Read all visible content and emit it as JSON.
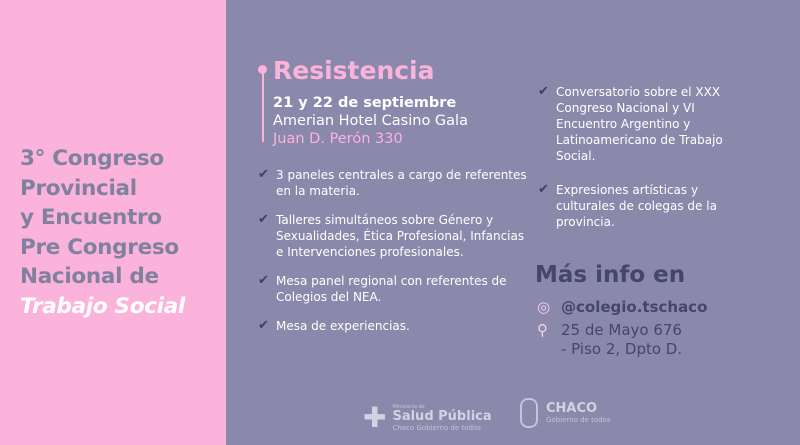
{
  "title": {
    "lines": [
      "3° Congreso",
      "Provincial",
      "y Encuentro",
      "Pre Congreso",
      "Nacional de"
    ],
    "highlight": "Trabajo Social"
  },
  "event": {
    "city": "Resistencia",
    "date": "21 y 22 de septiembre",
    "venue": "Amerian Hotel Casino Gala",
    "address": "Juan D. Perón 330"
  },
  "list_left": [
    {
      "icon": "checkmark-icon",
      "text": "3 paneles centrales a cargo de referentes en la materia."
    },
    {
      "icon": "checkmark-icon",
      "text": "Talleres simultáneos sobre Género y Sexualidades, Ética Profesional, Infancias e Intervenciones profesionales."
    },
    {
      "icon": "checkmark-icon",
      "text": "Mesa panel regional con referentes de Colegios del NEA."
    },
    {
      "icon": "checkmark-icon",
      "text": "Mesa de experiencias."
    }
  ],
  "list_right": [
    {
      "icon": "checkmark-icon",
      "text": "Conversatorio sobre el XXX Congreso Nacional y VI Encuentro Argentino y Latinoamericano de Trabajo Social."
    },
    {
      "icon": "checkmark-icon",
      "text": "Expresiones artísticas y culturales de colegas de la provincia."
    }
  ],
  "info": {
    "heading": "Más info en",
    "instagram": "@colegio.tschaco",
    "address_line1": "25 de Mayo 676",
    "address_line2": "- Piso 2, Dpto D."
  },
  "logos": {
    "salud_small": "Ministerio de",
    "salud_name": "Salud Pública",
    "salud_sub": "Chaco Gobierno de todos",
    "chaco_name": "CHACO",
    "chaco_sub": "Gobierno de todos"
  },
  "colors": {
    "pink": "#fbb3dc",
    "purple": "#8a89ab",
    "dark": "#45466c"
  }
}
